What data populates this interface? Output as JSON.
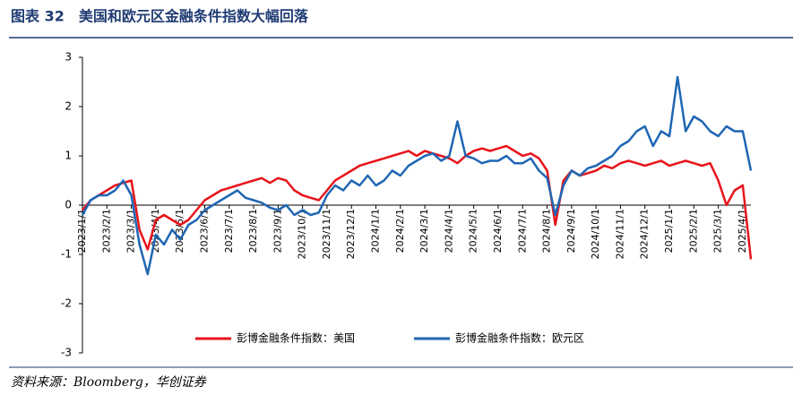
{
  "chart_data": {
    "type": "line",
    "title": "图表 32　美国和欧元区金融条件指数大幅回落",
    "source": "资料来源：Bloomberg，华创证券",
    "categories": [
      "2023/1/1",
      null,
      null,
      "2023/2/1",
      null,
      null,
      "2023/3/1",
      null,
      null,
      "2023/4/1",
      null,
      null,
      "2023/5/1",
      null,
      null,
      "2023/6/1",
      null,
      null,
      "2023/7/1",
      null,
      null,
      "2023/8/1",
      null,
      null,
      "2023/9/1",
      null,
      null,
      "2023/10/1",
      null,
      null,
      "2023/11/1",
      null,
      null,
      "2023/12/1",
      null,
      null,
      "2024/1/1",
      null,
      null,
      "2024/2/1",
      null,
      null,
      "2024/3/1",
      null,
      null,
      "2024/4/1",
      null,
      null,
      "2024/5/1",
      null,
      null,
      "2024/6/1",
      null,
      null,
      "2024/7/1",
      null,
      null,
      "2024/8/1",
      null,
      null,
      "2024/9/1",
      null,
      null,
      "2024/10/1",
      null,
      null,
      "2024/11/1",
      null,
      null,
      "2024/12/1",
      null,
      null,
      "2025/1/1",
      null,
      null,
      "2025/2/1",
      null,
      null,
      "2025/3/1",
      null,
      null,
      "2025/4/1",
      null
    ],
    "series": [
      {
        "name": "彭博金融条件指数：美国",
        "color": "#e8141b",
        "values": [
          -0.1,
          0.1,
          0.2,
          0.3,
          0.4,
          0.45,
          0.5,
          -0.5,
          -0.9,
          -0.3,
          -0.2,
          -0.3,
          -0.4,
          -0.3,
          -0.1,
          0.1,
          0.2,
          0.3,
          0.35,
          0.4,
          0.45,
          0.5,
          0.55,
          0.45,
          0.55,
          0.5,
          0.3,
          0.2,
          0.15,
          0.1,
          0.3,
          0.5,
          0.6,
          0.7,
          0.8,
          0.85,
          0.9,
          0.95,
          1.0,
          1.05,
          1.1,
          1.0,
          1.1,
          1.05,
          1.0,
          0.95,
          0.85,
          1.0,
          1.1,
          1.15,
          1.1,
          1.15,
          1.2,
          1.1,
          1.0,
          1.05,
          0.95,
          0.7,
          -0.4,
          0.5,
          0.7,
          0.6,
          0.65,
          0.7,
          0.8,
          0.75,
          0.85,
          0.9,
          0.85,
          0.8,
          0.85,
          0.9,
          0.8,
          0.85,
          0.9,
          0.85,
          0.8,
          0.85,
          0.5,
          0.0,
          0.3,
          0.4,
          -1.1
        ]
      },
      {
        "name": "彭博金融条件指数：欧元区",
        "color": "#1f66b4",
        "values": [
          -0.2,
          0.1,
          0.2,
          0.2,
          0.3,
          0.5,
          0.2,
          -0.8,
          -1.4,
          -0.6,
          -0.8,
          -0.5,
          -0.7,
          -0.4,
          -0.3,
          -0.1,
          0.0,
          0.1,
          0.2,
          0.3,
          0.15,
          0.1,
          0.05,
          -0.05,
          -0.1,
          0.0,
          -0.2,
          -0.1,
          -0.2,
          -0.15,
          0.2,
          0.4,
          0.3,
          0.5,
          0.4,
          0.6,
          0.4,
          0.5,
          0.7,
          0.6,
          0.8,
          0.9,
          1.0,
          1.05,
          0.9,
          1.0,
          1.7,
          1.0,
          0.95,
          0.85,
          0.9,
          0.9,
          1.0,
          0.85,
          0.85,
          0.95,
          0.7,
          0.55,
          -0.2,
          0.4,
          0.7,
          0.6,
          0.75,
          0.8,
          0.9,
          1.0,
          1.2,
          1.3,
          1.5,
          1.6,
          1.2,
          1.5,
          1.4,
          2.6,
          1.5,
          1.8,
          1.7,
          1.5,
          1.4,
          1.6,
          1.5,
          1.5,
          0.7
        ]
      }
    ],
    "ylim": [
      -3,
      3
    ],
    "yticks": [
      -3,
      -2,
      -1,
      0,
      1,
      2,
      3
    ],
    "legend": "bottom"
  }
}
